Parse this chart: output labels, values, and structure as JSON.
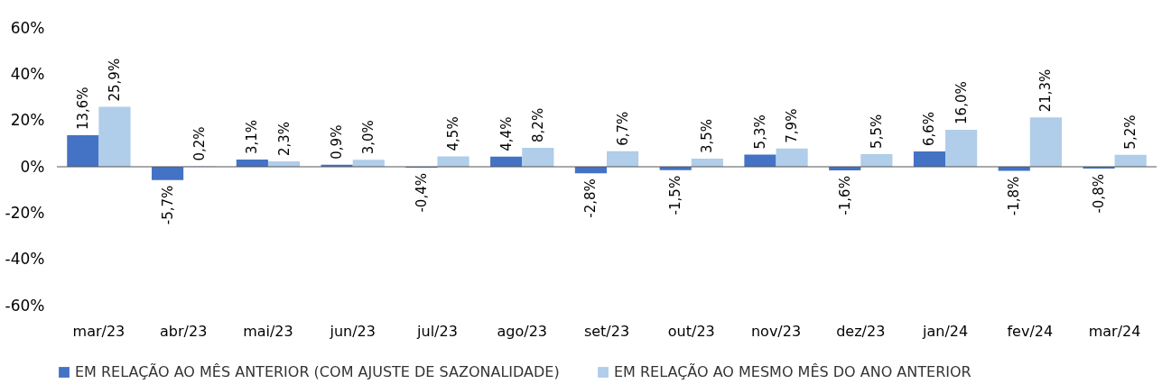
{
  "chart_data": {
    "type": "bar",
    "categories": [
      "mar/23",
      "abr/23",
      "mai/23",
      "jun/23",
      "jul/23",
      "ago/23",
      "set/23",
      "out/23",
      "nov/23",
      "dez/23",
      "jan/24",
      "fev/24",
      "mar/24"
    ],
    "series": [
      {
        "name": "EM RELAÇÃO AO MÊS ANTERIOR (COM AJUSTE DE SAZONALIDADE)",
        "color": "#4472c4",
        "values": [
          13.6,
          -5.7,
          3.1,
          0.9,
          -0.4,
          4.4,
          -2.8,
          -1.5,
          5.3,
          -1.6,
          6.6,
          -1.8,
          -0.8
        ],
        "value_labels": [
          "13,6%",
          "-5,7%",
          "3,1%",
          "0,9%",
          "-0,4%",
          "4,4%",
          "-2,8%",
          "-1,5%",
          "5,3%",
          "-1,6%",
          "6,6%",
          "-1,8%",
          "-0,8%"
        ]
      },
      {
        "name": "EM RELAÇÃO AO MESMO MÊS DO ANO ANTERIOR",
        "color": "#b0cdea",
        "values": [
          25.9,
          0.2,
          2.3,
          3.0,
          4.5,
          8.2,
          6.7,
          3.5,
          7.9,
          5.5,
          16.0,
          21.3,
          5.2
        ],
        "value_labels": [
          "25,9%",
          "0,2%",
          "2,3%",
          "3,0%",
          "4,5%",
          "8,2%",
          "6,7%",
          "3,5%",
          "7,9%",
          "5,5%",
          "16,0%",
          "21,3%",
          "5,2%"
        ]
      }
    ],
    "ylim": [
      -60,
      60
    ],
    "yticks": [
      {
        "value": -60,
        "label": "-60%"
      },
      {
        "value": -40,
        "label": "-40%"
      },
      {
        "value": -20,
        "label": "-20%"
      },
      {
        "value": 0,
        "label": "0%"
      },
      {
        "value": 20,
        "label": "20%"
      },
      {
        "value": 40,
        "label": "40%"
      },
      {
        "value": 60,
        "label": "60%"
      }
    ],
    "grid": false,
    "ref_lines": [
      {
        "axis": "y",
        "value": 0,
        "color": "#555555"
      }
    ],
    "legend": "bottom"
  }
}
